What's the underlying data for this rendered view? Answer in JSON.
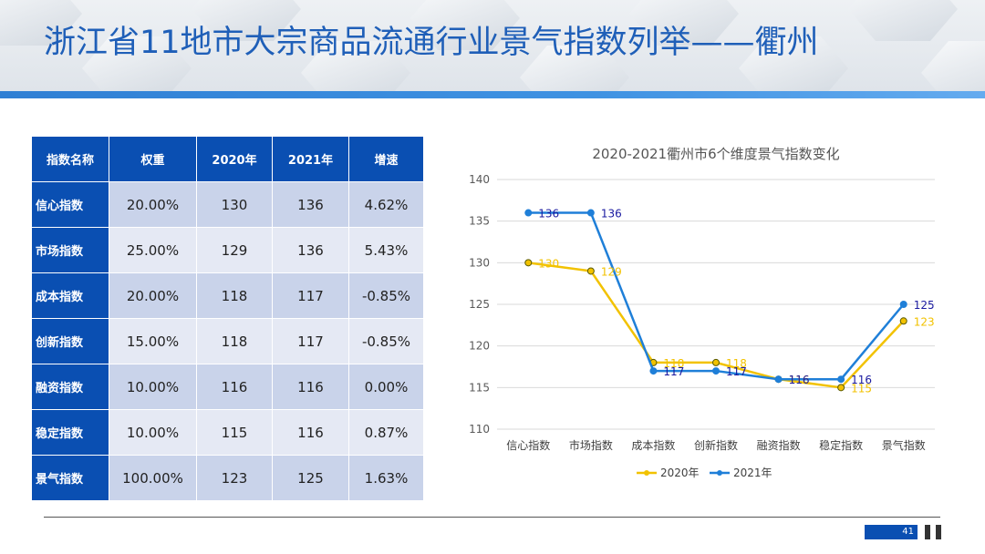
{
  "title": "浙江省11地市大宗商品流通行业景气指数列举——衢州",
  "table": {
    "headers": [
      "指数名称",
      "权重",
      "2020年",
      "2021年",
      "增速"
    ],
    "rows": [
      [
        "信心指数",
        "20.00%",
        "130",
        "136",
        "4.62%"
      ],
      [
        "市场指数",
        "25.00%",
        "129",
        "136",
        "5.43%"
      ],
      [
        "成本指数",
        "20.00%",
        "118",
        "117",
        "-0.85%"
      ],
      [
        "创新指数",
        "15.00%",
        "118",
        "117",
        "-0.85%"
      ],
      [
        "融资指数",
        "10.00%",
        "116",
        "116",
        "0.00%"
      ],
      [
        "稳定指数",
        "10.00%",
        "115",
        "116",
        "0.87%"
      ],
      [
        "景气指数",
        "100.00%",
        "123",
        "125",
        "1.63%"
      ]
    ]
  },
  "chart_data": {
    "type": "line",
    "title": "2020-2021衢州市6个维度景气指数变化",
    "categories": [
      "信心指数",
      "市场指数",
      "成本指数",
      "创新指数",
      "融资指数",
      "稳定指数",
      "景气指数"
    ],
    "series": [
      {
        "name": "2020年",
        "values": [
          130,
          129,
          118,
          118,
          116,
          115,
          123
        ],
        "color": "#f2c200",
        "label_color": "#f2c200"
      },
      {
        "name": "2021年",
        "values": [
          136,
          136,
          117,
          117,
          116,
          116,
          125
        ],
        "color": "#1f7fd8",
        "label_color": "#1a1aa0"
      }
    ],
    "ylim": [
      110,
      140
    ],
    "yticks": [
      110,
      115,
      120,
      125,
      130,
      135,
      140
    ],
    "grid": true,
    "legend": "bottom",
    "xlabel": "",
    "ylabel": ""
  },
  "footer": {
    "page_number": "41"
  }
}
